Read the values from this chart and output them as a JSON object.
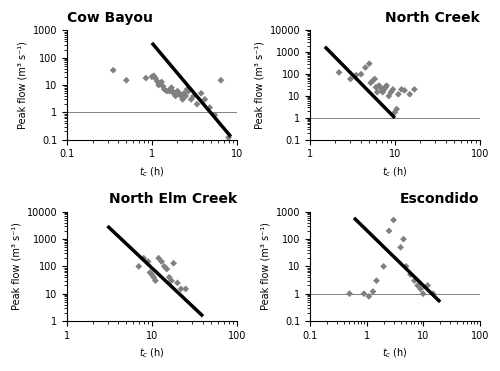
{
  "subplots": [
    {
      "title": "Cow Bayou",
      "title_loc": "left",
      "xlim": [
        0.1,
        10
      ],
      "ylim": [
        0.1,
        1000
      ],
      "xlabel": "t_c (h)",
      "ylabel": "Peak flow (m³ s⁻¹)",
      "scatter_x": [
        0.35,
        0.5,
        0.85,
        1.0,
        1.05,
        1.1,
        1.15,
        1.2,
        1.3,
        1.35,
        1.4,
        1.5,
        1.6,
        1.65,
        1.7,
        1.75,
        1.8,
        1.9,
        2.0,
        2.1,
        2.2,
        2.3,
        2.4,
        2.5,
        2.6,
        2.7,
        2.9,
        3.1,
        3.4,
        3.8,
        4.2,
        4.8,
        5.5,
        6.5,
        8.0
      ],
      "scatter_y": [
        35,
        15,
        18,
        20,
        22,
        18,
        14,
        10,
        13,
        9,
        7,
        6,
        6,
        7,
        8,
        6,
        5,
        4,
        6,
        5,
        4,
        3,
        5,
        4,
        7,
        6,
        3,
        4,
        2,
        5,
        3,
        1.5,
        0.8,
        15,
        0.12
      ],
      "line_x": [
        1.0,
        8.5
      ],
      "line_y": [
        350,
        0.13
      ],
      "hline_y": 1.0
    },
    {
      "title": "North Creek",
      "title_loc": "right",
      "xlim": [
        1,
        100
      ],
      "ylim": [
        0.1,
        10000
      ],
      "xlabel": "t_c (h)",
      "ylabel": "Peak flow (m³ s⁻¹)",
      "scatter_x": [
        2.2,
        3.0,
        3.5,
        4.0,
        4.5,
        5.0,
        5.2,
        5.5,
        5.8,
        6.0,
        6.2,
        6.5,
        6.8,
        7.0,
        7.2,
        7.5,
        7.8,
        8.0,
        8.5,
        9.0,
        9.5,
        10.0,
        10.5,
        11.0,
        12.0,
        13.0,
        15.0,
        17.0
      ],
      "scatter_y": [
        120,
        60,
        90,
        100,
        200,
        300,
        40,
        50,
        60,
        25,
        15,
        30,
        25,
        20,
        15,
        20,
        25,
        30,
        10,
        15,
        20,
        1.8,
        2.5,
        12,
        20,
        18,
        12,
        20
      ],
      "line_x": [
        1.5,
        10.0
      ],
      "line_y": [
        1800,
        1.0
      ],
      "hline_y": 1.0
    },
    {
      "title": "North Elm Creek",
      "title_loc": "right",
      "xlim": [
        1,
        100
      ],
      "ylim": [
        1,
        10000
      ],
      "xlabel": "t_c (h)",
      "ylabel": "Peak flow (m³ s⁻¹)",
      "scatter_x": [
        7.0,
        8.0,
        9.0,
        9.5,
        10.0,
        10.5,
        11.0,
        12.0,
        13.0,
        14.0,
        15.0,
        16.0,
        17.0,
        18.0,
        20.0,
        22.0,
        25.0
      ],
      "scatter_y": [
        100,
        200,
        150,
        60,
        50,
        40,
        30,
        200,
        150,
        100,
        80,
        40,
        30,
        130,
        25,
        15,
        15
      ],
      "line_x": [
        3.0,
        40.0
      ],
      "line_y": [
        3000,
        1.5
      ],
      "hline_y": 1.0
    },
    {
      "title": "Escondido",
      "title_loc": "right",
      "xlim": [
        0.1,
        100
      ],
      "ylim": [
        0.1,
        1000
      ],
      "xlabel": "t_c (h)",
      "ylabel": "Peak flow (m³ s⁻¹)",
      "scatter_x": [
        0.5,
        0.9,
        1.1,
        1.3,
        1.5,
        2.0,
        2.5,
        3.0,
        4.0,
        4.5,
        5.0,
        6.0,
        7.0,
        8.0,
        9.0,
        10.0,
        12.0,
        15.0
      ],
      "scatter_y": [
        1.0,
        1.0,
        0.8,
        1.2,
        3.0,
        10.0,
        200.0,
        500.0,
        50.0,
        100.0,
        10.0,
        5.0,
        3.0,
        2.0,
        1.5,
        1.0,
        2.0,
        1.0
      ],
      "line_x": [
        0.6,
        20.0
      ],
      "line_y": [
        600.0,
        0.5
      ],
      "hline_y": 1.0
    }
  ],
  "scatter_color": "#808080",
  "scatter_marker": "D",
  "scatter_size": 12,
  "line_color": "black",
  "line_width": 2.5,
  "bg_color": "white",
  "title_fontsize": 10,
  "label_fontsize": 7,
  "tick_fontsize": 7
}
